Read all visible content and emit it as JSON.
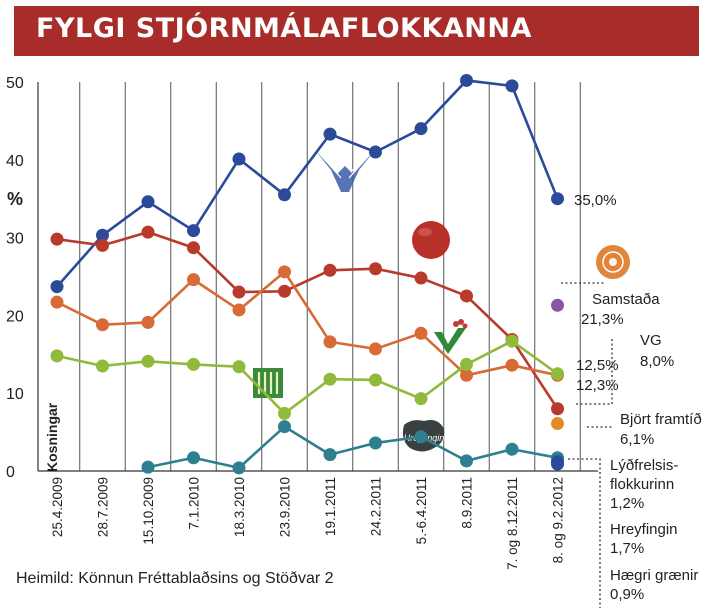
{
  "title": "FYLGI STJÓRNMÁLAFLOKKANNA",
  "source": "Heimild: Könnun Fréttablaðsins og Stöðvar 2",
  "chart_data": {
    "type": "line",
    "title": "FYLGI STJÓRNMÁLAFLOKKANNA",
    "ylabel": "%",
    "ylim": [
      0,
      50
    ],
    "yticks": [
      0,
      10,
      20,
      30,
      40,
      50
    ],
    "grid": "vertical",
    "categories": [
      "25.4.2009",
      "28.7.2009",
      "15.10.2009",
      "7.1.2010",
      "18.3.2010",
      "23.9.2010",
      "19.1.2011",
      "24.2.2011",
      "5.-6.4.2011",
      "8.9.2011",
      "7. og 8.12.2011",
      "8. og 9.2.2012"
    ],
    "first_category_note": "Kosningar",
    "series": [
      {
        "color": "#2b4a9a",
        "values": [
          23.7,
          30.3,
          34.6,
          30.9,
          40.1,
          35.5,
          43.3,
          41.0,
          44.0,
          50.2,
          49.5,
          35.0
        ]
      },
      {
        "color": "#b83a2a",
        "values": [
          29.8,
          29.0,
          30.7,
          28.7,
          23.0,
          23.1,
          25.8,
          26.0,
          24.8,
          22.5,
          16.9,
          8.0
        ]
      },
      {
        "color": "#d86a36",
        "values": [
          21.7,
          18.8,
          19.1,
          24.6,
          20.7,
          25.6,
          16.6,
          15.7,
          17.7,
          12.3,
          13.6,
          12.3
        ]
      },
      {
        "color": "#8fba3c",
        "values": [
          14.8,
          13.5,
          14.1,
          13.7,
          13.4,
          7.4,
          11.8,
          11.7,
          9.3,
          13.7,
          16.7,
          12.5
        ]
      },
      {
        "color": "#2e7f8f",
        "values": [
          null,
          null,
          0.5,
          1.7,
          0.4,
          5.7,
          2.1,
          3.6,
          4.4,
          1.3,
          2.8,
          1.7
        ]
      }
    ],
    "extra_points": [
      {
        "value": 21.3,
        "color": "#8a55a8"
      },
      {
        "value": 6.1,
        "color": "#e08a2a"
      },
      {
        "value": 1.2,
        "color": "#2b4a9a"
      },
      {
        "value": 0.9,
        "color": "#2b4a9a"
      }
    ],
    "labels": {
      "d": "35,0%",
      "samstada": "Samstaða",
      "samstada_val": "21,3%",
      "vg": "VG",
      "vg_val": "8,0%",
      "v1": "12,5%",
      "v2": "12,3%",
      "bf": "Björt framtíð",
      "bf_val": "6,1%",
      "lf1": "Lýðfrelsis-",
      "lf2": "flokkurinn",
      "lf_val": "1,2%",
      "hr": "Hreyfingin",
      "hr_val": "1,7%",
      "hg": "Hægri grænir",
      "hg_val": "0,9%",
      "hreyfingin_logo": "Hreyfingin"
    },
    "icons": [
      "falcon-logo-icon",
      "red-ball-logo-icon",
      "samstada-logo-icon",
      "framsokn-logo-icon",
      "vg-logo-icon",
      "hreyfingin-logo-icon"
    ]
  }
}
